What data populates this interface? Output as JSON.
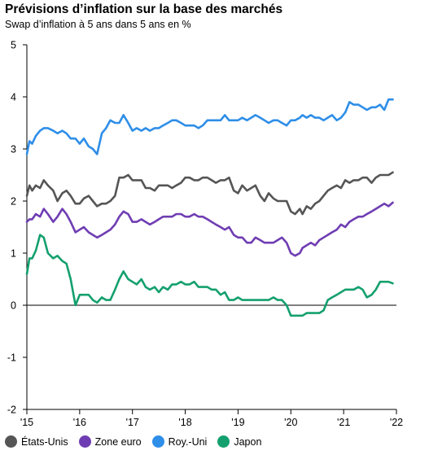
{
  "title": "Prévisions d’inflation sur la base des marchés",
  "subtitle": "Swap d’inflation à 5 ans dans 5 ans en %",
  "chart_data": {
    "type": "line",
    "title": "Prévisions d’inflation sur la base des marchés",
    "subtitle": "Swap d’inflation à 5 ans dans 5 ans en %",
    "ylim": [
      -2,
      5
    ],
    "yticks": [
      -2,
      -1,
      0,
      1,
      2,
      3,
      4,
      5
    ],
    "xlim": [
      2015.0,
      2022.0
    ],
    "xticks": [
      2015,
      2016,
      2017,
      2018,
      2019,
      2020,
      2021,
      2022
    ],
    "xtick_labels": [
      "'15",
      "'16",
      "'17",
      "'18",
      "'19",
      "'20",
      "'21",
      "'22"
    ],
    "grid": false,
    "legend_position": "bottom",
    "series": [
      {
        "name": "États-Unis",
        "color": "#555555",
        "x": [
          2015.0,
          2015.05,
          2015.1,
          2015.17,
          2015.25,
          2015.32,
          2015.4,
          2015.5,
          2015.58,
          2015.67,
          2015.75,
          2015.83,
          2015.92,
          2016.0,
          2016.08,
          2016.17,
          2016.25,
          2016.33,
          2016.42,
          2016.5,
          2016.58,
          2016.67,
          2016.75,
          2016.83,
          2016.92,
          2017.0,
          2017.08,
          2017.17,
          2017.25,
          2017.33,
          2017.42,
          2017.5,
          2017.58,
          2017.67,
          2017.75,
          2017.83,
          2017.92,
          2018.0,
          2018.08,
          2018.17,
          2018.25,
          2018.33,
          2018.42,
          2018.5,
          2018.58,
          2018.67,
          2018.75,
          2018.83,
          2018.92,
          2019.0,
          2019.08,
          2019.17,
          2019.25,
          2019.33,
          2019.42,
          2019.5,
          2019.58,
          2019.67,
          2019.75,
          2019.83,
          2019.92,
          2020.0,
          2020.08,
          2020.17,
          2020.22,
          2020.3,
          2020.38,
          2020.46,
          2020.54,
          2020.62,
          2020.7,
          2020.78,
          2020.87,
          2020.95,
          2021.03,
          2021.11,
          2021.19,
          2021.28,
          2021.36,
          2021.44,
          2021.53,
          2021.61,
          2021.69,
          2021.77,
          2021.85,
          2021.93
        ],
        "y": [
          2.1,
          2.3,
          2.2,
          2.3,
          2.25,
          2.4,
          2.3,
          2.2,
          2.0,
          2.15,
          2.2,
          2.1,
          1.95,
          1.95,
          2.05,
          2.1,
          2.0,
          1.9,
          1.95,
          1.95,
          2.0,
          2.1,
          2.45,
          2.45,
          2.5,
          2.4,
          2.4,
          2.4,
          2.25,
          2.25,
          2.2,
          2.3,
          2.3,
          2.3,
          2.25,
          2.3,
          2.35,
          2.45,
          2.45,
          2.4,
          2.4,
          2.45,
          2.45,
          2.4,
          2.35,
          2.4,
          2.4,
          2.45,
          2.2,
          2.15,
          2.3,
          2.2,
          2.25,
          2.3,
          2.1,
          2.0,
          2.15,
          2.05,
          2.0,
          2.0,
          2.0,
          1.8,
          1.75,
          1.85,
          1.75,
          1.9,
          1.85,
          1.95,
          2.0,
          2.1,
          2.2,
          2.25,
          2.3,
          2.25,
          2.4,
          2.35,
          2.4,
          2.4,
          2.45,
          2.45,
          2.35,
          2.45,
          2.5,
          2.5,
          2.5,
          2.55
        ]
      },
      {
        "name": "Zone euro",
        "color": "#6f3db3",
        "x": [
          2015.0,
          2015.05,
          2015.1,
          2015.17,
          2015.25,
          2015.32,
          2015.4,
          2015.5,
          2015.58,
          2015.67,
          2015.75,
          2015.83,
          2015.92,
          2016.0,
          2016.08,
          2016.17,
          2016.25,
          2016.33,
          2016.42,
          2016.5,
          2016.58,
          2016.67,
          2016.75,
          2016.83,
          2016.92,
          2017.0,
          2017.08,
          2017.17,
          2017.25,
          2017.33,
          2017.42,
          2017.5,
          2017.58,
          2017.67,
          2017.75,
          2017.83,
          2017.92,
          2018.0,
          2018.08,
          2018.17,
          2018.25,
          2018.33,
          2018.42,
          2018.5,
          2018.58,
          2018.67,
          2018.75,
          2018.83,
          2018.92,
          2019.0,
          2019.08,
          2019.17,
          2019.25,
          2019.33,
          2019.42,
          2019.5,
          2019.58,
          2019.67,
          2019.75,
          2019.83,
          2019.92,
          2020.0,
          2020.08,
          2020.17,
          2020.22,
          2020.3,
          2020.38,
          2020.46,
          2020.54,
          2020.62,
          2020.7,
          2020.78,
          2020.87,
          2020.95,
          2021.03,
          2021.11,
          2021.19,
          2021.28,
          2021.36,
          2021.44,
          2021.53,
          2021.61,
          2021.69,
          2021.77,
          2021.85,
          2021.93
        ],
        "y": [
          1.6,
          1.65,
          1.65,
          1.75,
          1.7,
          1.85,
          1.75,
          1.6,
          1.7,
          1.85,
          1.75,
          1.6,
          1.4,
          1.45,
          1.5,
          1.4,
          1.35,
          1.3,
          1.35,
          1.4,
          1.45,
          1.55,
          1.7,
          1.8,
          1.75,
          1.6,
          1.6,
          1.65,
          1.6,
          1.55,
          1.6,
          1.65,
          1.7,
          1.7,
          1.7,
          1.75,
          1.75,
          1.7,
          1.7,
          1.75,
          1.7,
          1.7,
          1.65,
          1.6,
          1.55,
          1.5,
          1.45,
          1.5,
          1.35,
          1.3,
          1.3,
          1.2,
          1.2,
          1.3,
          1.25,
          1.2,
          1.2,
          1.2,
          1.25,
          1.3,
          1.2,
          1.0,
          0.95,
          1.0,
          1.1,
          1.15,
          1.2,
          1.15,
          1.25,
          1.3,
          1.35,
          1.4,
          1.45,
          1.55,
          1.5,
          1.6,
          1.65,
          1.7,
          1.7,
          1.75,
          1.8,
          1.85,
          1.9,
          1.95,
          1.9,
          1.97
        ]
      },
      {
        "name": "Roy.-Uni",
        "color": "#2e8ee8",
        "x": [
          2015.0,
          2015.05,
          2015.1,
          2015.17,
          2015.25,
          2015.32,
          2015.4,
          2015.5,
          2015.58,
          2015.67,
          2015.75,
          2015.83,
          2015.92,
          2016.0,
          2016.08,
          2016.17,
          2016.25,
          2016.33,
          2016.42,
          2016.5,
          2016.58,
          2016.67,
          2016.75,
          2016.83,
          2016.92,
          2017.0,
          2017.08,
          2017.17,
          2017.25,
          2017.33,
          2017.42,
          2017.5,
          2017.58,
          2017.67,
          2017.75,
          2017.83,
          2017.92,
          2018.0,
          2018.08,
          2018.17,
          2018.25,
          2018.33,
          2018.42,
          2018.5,
          2018.58,
          2018.67,
          2018.75,
          2018.83,
          2018.92,
          2019.0,
          2019.08,
          2019.17,
          2019.25,
          2019.33,
          2019.42,
          2019.5,
          2019.58,
          2019.67,
          2019.75,
          2019.83,
          2019.92,
          2020.0,
          2020.08,
          2020.17,
          2020.22,
          2020.3,
          2020.38,
          2020.46,
          2020.54,
          2020.62,
          2020.7,
          2020.78,
          2020.87,
          2020.95,
          2021.03,
          2021.11,
          2021.19,
          2021.28,
          2021.36,
          2021.44,
          2021.53,
          2021.61,
          2021.69,
          2021.77,
          2021.85,
          2021.93
        ],
        "y": [
          2.9,
          3.15,
          3.1,
          3.25,
          3.35,
          3.4,
          3.4,
          3.35,
          3.3,
          3.35,
          3.3,
          3.2,
          3.2,
          3.1,
          3.2,
          3.05,
          3.0,
          2.9,
          3.3,
          3.4,
          3.55,
          3.5,
          3.5,
          3.65,
          3.5,
          3.35,
          3.4,
          3.35,
          3.4,
          3.35,
          3.4,
          3.4,
          3.45,
          3.5,
          3.55,
          3.55,
          3.5,
          3.45,
          3.45,
          3.45,
          3.4,
          3.45,
          3.55,
          3.55,
          3.55,
          3.55,
          3.65,
          3.55,
          3.55,
          3.55,
          3.6,
          3.55,
          3.6,
          3.65,
          3.6,
          3.55,
          3.5,
          3.55,
          3.55,
          3.5,
          3.45,
          3.55,
          3.55,
          3.6,
          3.65,
          3.6,
          3.65,
          3.6,
          3.6,
          3.55,
          3.6,
          3.65,
          3.55,
          3.6,
          3.7,
          3.9,
          3.85,
          3.85,
          3.8,
          3.75,
          3.8,
          3.8,
          3.85,
          3.75,
          3.95,
          3.95
        ]
      },
      {
        "name": "Japon",
        "color": "#14a06e",
        "x": [
          2015.0,
          2015.05,
          2015.1,
          2015.17,
          2015.25,
          2015.32,
          2015.4,
          2015.5,
          2015.58,
          2015.67,
          2015.75,
          2015.83,
          2015.92,
          2016.0,
          2016.08,
          2016.17,
          2016.25,
          2016.33,
          2016.42,
          2016.5,
          2016.58,
          2016.67,
          2016.75,
          2016.83,
          2016.92,
          2017.0,
          2017.08,
          2017.17,
          2017.25,
          2017.33,
          2017.42,
          2017.5,
          2017.58,
          2017.67,
          2017.75,
          2017.83,
          2017.92,
          2018.0,
          2018.08,
          2018.17,
          2018.25,
          2018.33,
          2018.42,
          2018.5,
          2018.58,
          2018.67,
          2018.75,
          2018.83,
          2018.92,
          2019.0,
          2019.08,
          2019.17,
          2019.25,
          2019.33,
          2019.42,
          2019.5,
          2019.58,
          2019.67,
          2019.75,
          2019.83,
          2019.92,
          2020.0,
          2020.08,
          2020.17,
          2020.22,
          2020.3,
          2020.38,
          2020.46,
          2020.54,
          2020.62,
          2020.7,
          2020.78,
          2020.87,
          2020.95,
          2021.03,
          2021.11,
          2021.19,
          2021.28,
          2021.36,
          2021.44,
          2021.53,
          2021.61,
          2021.69,
          2021.77,
          2021.85,
          2021.93
        ],
        "y": [
          0.6,
          0.9,
          0.9,
          1.05,
          1.35,
          1.3,
          1.0,
          0.9,
          0.95,
          0.85,
          0.8,
          0.5,
          0.0,
          0.2,
          0.2,
          0.2,
          0.1,
          0.05,
          0.15,
          0.1,
          0.1,
          0.3,
          0.5,
          0.65,
          0.5,
          0.45,
          0.4,
          0.5,
          0.35,
          0.3,
          0.35,
          0.25,
          0.35,
          0.3,
          0.4,
          0.4,
          0.45,
          0.4,
          0.4,
          0.45,
          0.35,
          0.35,
          0.35,
          0.3,
          0.3,
          0.2,
          0.25,
          0.1,
          0.1,
          0.15,
          0.1,
          0.1,
          0.1,
          0.1,
          0.1,
          0.1,
          0.1,
          0.15,
          0.1,
          0.1,
          0.0,
          -0.2,
          -0.2,
          -0.2,
          -0.2,
          -0.15,
          -0.15,
          -0.15,
          -0.15,
          -0.1,
          0.1,
          0.15,
          0.2,
          0.25,
          0.3,
          0.3,
          0.3,
          0.35,
          0.3,
          0.15,
          0.2,
          0.3,
          0.45,
          0.45,
          0.45,
          0.42
        ]
      }
    ]
  }
}
